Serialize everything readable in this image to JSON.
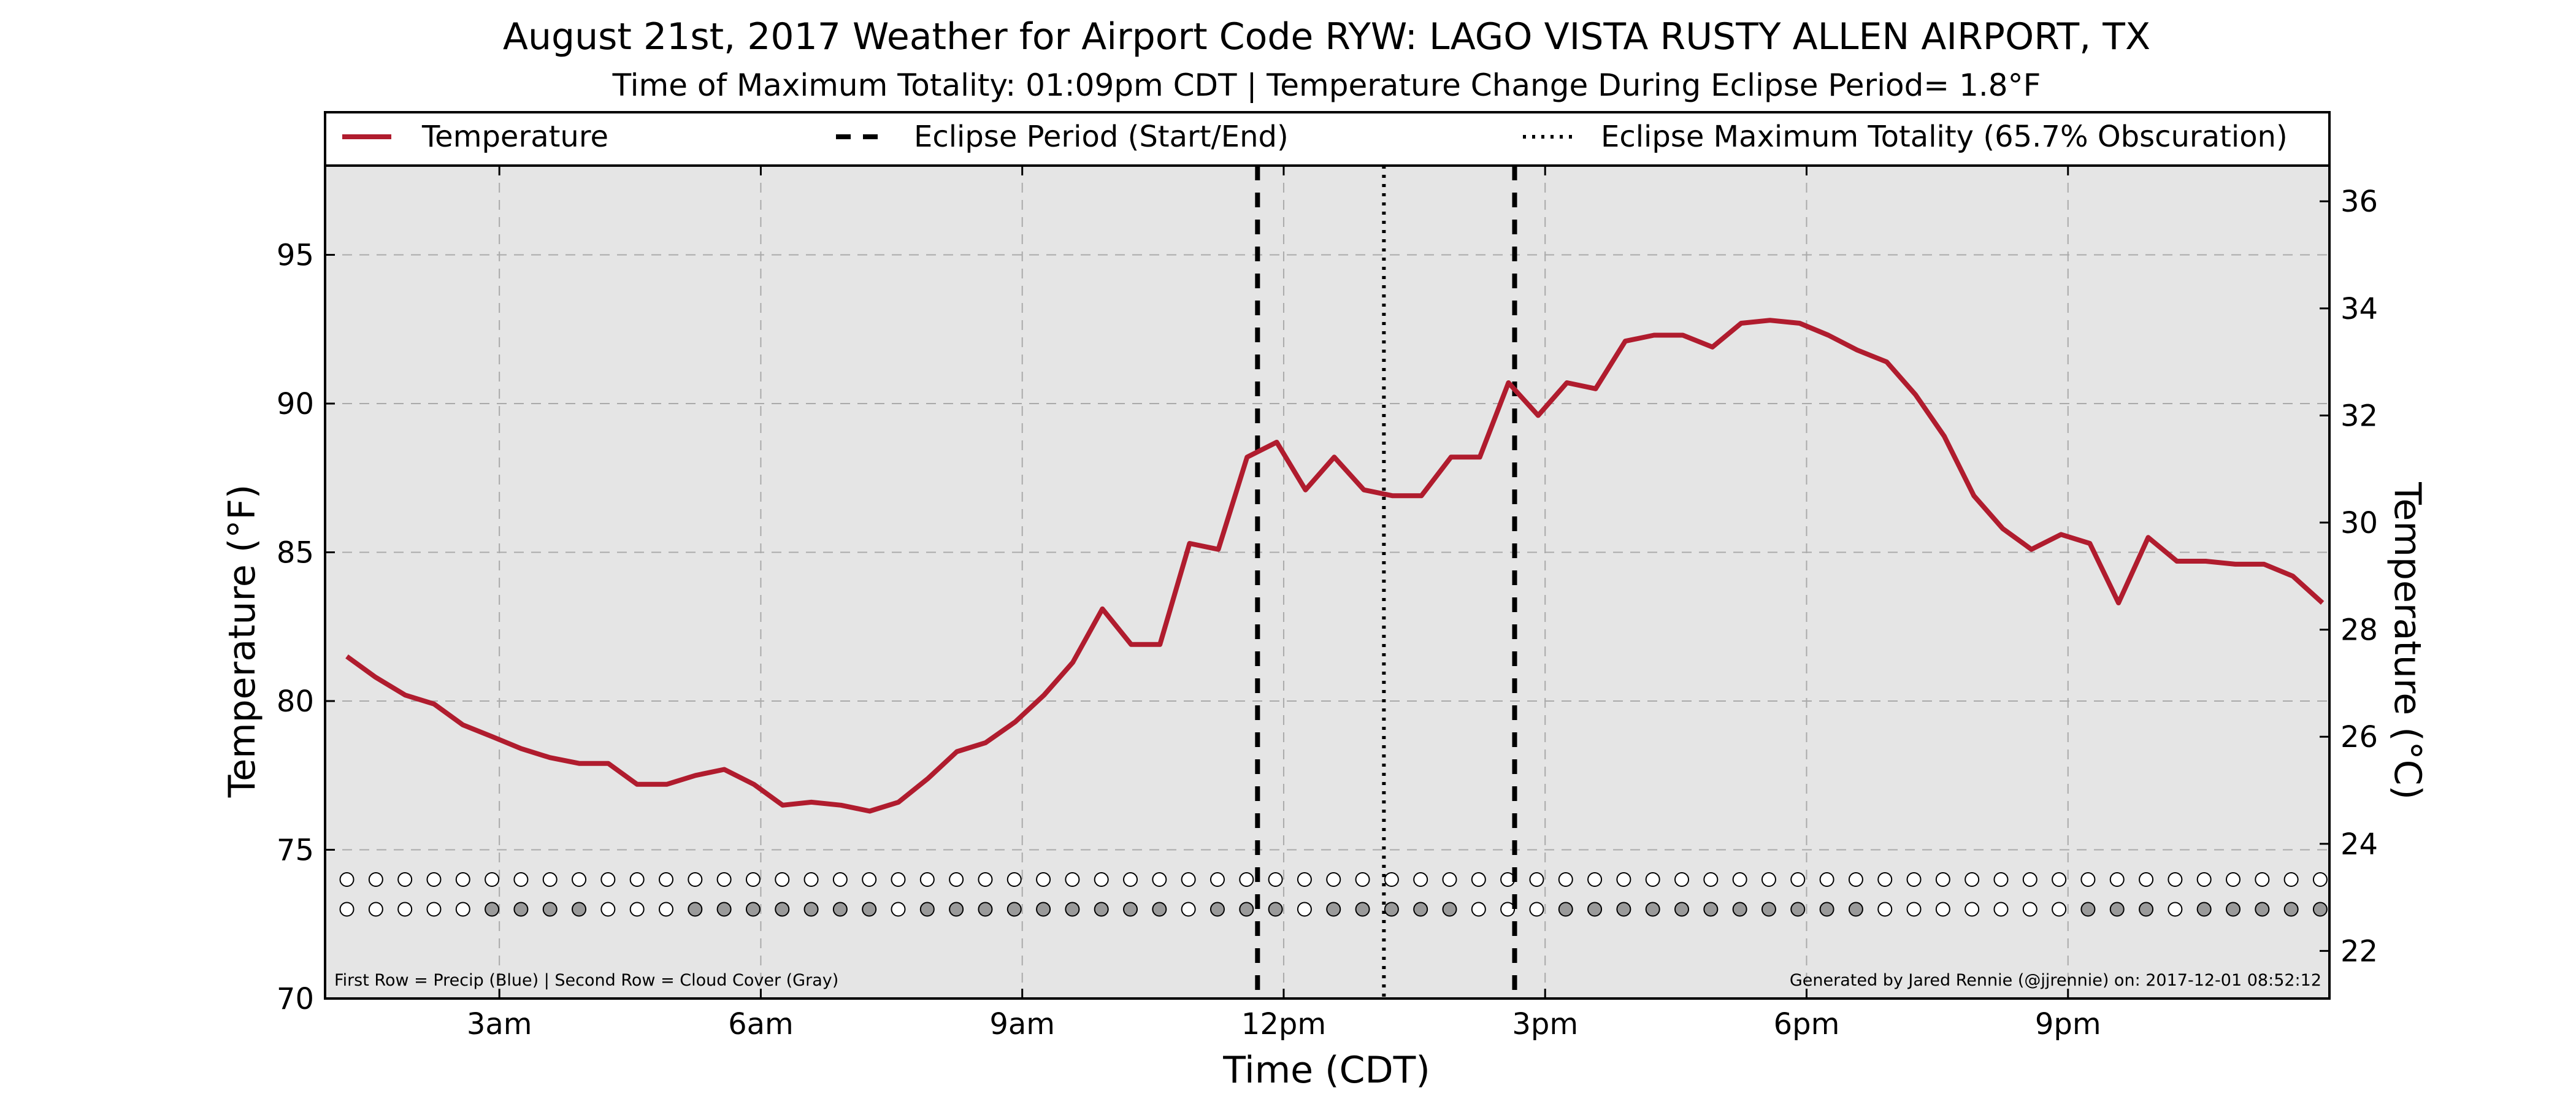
{
  "chart_data": {
    "type": "line",
    "title": "August 21st, 2017 Weather for Airport Code RYW: LAGO VISTA RUSTY ALLEN AIRPORT, TX",
    "subtitle": "Time of Maximum Totality: 01:09pm CDT | Temperature Change During Eclipse Period= 1.8°F",
    "xlabel": "Time (CDT)",
    "ylabel": "Temperature (°F)",
    "y2label": "Temperature (°C)",
    "xlim": [
      1.0,
      24.0
    ],
    "ylim": [
      70,
      98
    ],
    "y2lim": [
      21.111,
      36.667
    ],
    "x_ticks": [
      {
        "x": 3,
        "label": "3am"
      },
      {
        "x": 6,
        "label": "6am"
      },
      {
        "x": 9,
        "label": "9am"
      },
      {
        "x": 12,
        "label": "12pm"
      },
      {
        "x": 15,
        "label": "3pm"
      },
      {
        "x": 18,
        "label": "6pm"
      },
      {
        "x": 21,
        "label": "9pm"
      }
    ],
    "y_ticks": [
      70,
      75,
      80,
      85,
      90,
      95
    ],
    "y2_ticks": [
      22,
      24,
      26,
      28,
      30,
      32,
      34,
      36
    ],
    "grid": true,
    "legend_position": "top",
    "legend": [
      "Temperature",
      "Eclipse Period (Start/End)",
      "Eclipse Maximum Totality (65.7% Obscuration)"
    ],
    "series": [
      {
        "name": "Temperature",
        "color": "#b01c2e",
        "x": [
          1.25,
          1.58,
          1.92,
          2.25,
          2.58,
          2.92,
          3.25,
          3.58,
          3.92,
          4.25,
          4.58,
          4.92,
          5.25,
          5.58,
          5.92,
          6.25,
          6.58,
          6.92,
          7.25,
          7.58,
          7.92,
          8.25,
          8.58,
          8.92,
          9.25,
          9.58,
          9.92,
          10.25,
          10.58,
          10.92,
          11.25,
          11.58,
          11.92,
          12.25,
          12.58,
          12.92,
          13.25,
          13.58,
          13.92,
          14.25,
          14.58,
          14.92,
          15.25,
          15.58,
          15.92,
          16.25,
          16.58,
          16.92,
          17.25,
          17.58,
          17.92,
          18.25,
          18.58,
          18.92,
          19.25,
          19.58,
          19.92,
          20.25,
          20.58,
          20.92,
          21.25,
          21.58,
          21.92,
          22.25,
          22.58,
          22.92,
          23.25,
          23.58,
          23.92
        ],
        "y": [
          81.5,
          80.8,
          80.2,
          79.9,
          79.2,
          78.8,
          78.4,
          78.1,
          77.9,
          77.9,
          77.2,
          77.2,
          77.5,
          77.7,
          77.2,
          76.5,
          76.6,
          76.5,
          76.3,
          76.6,
          77.4,
          78.3,
          78.6,
          79.3,
          80.2,
          81.3,
          83.1,
          81.9,
          81.9,
          85.3,
          85.1,
          88.2,
          88.7,
          87.1,
          88.2,
          87.1,
          86.9,
          86.9,
          88.2,
          88.2,
          90.7,
          89.6,
          90.7,
          90.5,
          92.1,
          92.3,
          92.3,
          91.9,
          92.7,
          92.8,
          92.7,
          92.3,
          91.8,
          91.4,
          90.3,
          88.9,
          86.9,
          85.8,
          85.1,
          85.6,
          85.3,
          83.3,
          85.5,
          84.7,
          84.7,
          84.6,
          84.6,
          84.2,
          83.3
        ]
      }
    ],
    "eclipse_start": 11.7,
    "eclipse_end": 14.65,
    "eclipse_max": 13.15,
    "marker_rows": {
      "x_start": 1.25,
      "x_step": 0.333,
      "count": 69,
      "precip_y": 74.0,
      "cloud_y": 73.0,
      "precip_filled": [],
      "cloud_filled": [
        5,
        6,
        7,
        8,
        12,
        13,
        14,
        15,
        16,
        17,
        18,
        20,
        21,
        22,
        23,
        24,
        25,
        26,
        27,
        28,
        30,
        31,
        32,
        34,
        35,
        36,
        37,
        38,
        42,
        43,
        44,
        45,
        46,
        47,
        48,
        49,
        50,
        51,
        52,
        60,
        61,
        62,
        64,
        65,
        66,
        67,
        68
      ]
    },
    "footnote_left": "First Row = Precip (Blue) | Second Row = Cloud Cover (Gray)",
    "footnote_right": "Generated by Jared Rennie (@jjrennie) on: 2017-12-01 08:52:12"
  },
  "colors": {
    "plot_bg": "#e5e5e5",
    "temperature": "#b01c2e",
    "grid": "#aaaaaa",
    "cloud_fill": "#9a9a9a",
    "marker_empty": "#ffffff"
  }
}
